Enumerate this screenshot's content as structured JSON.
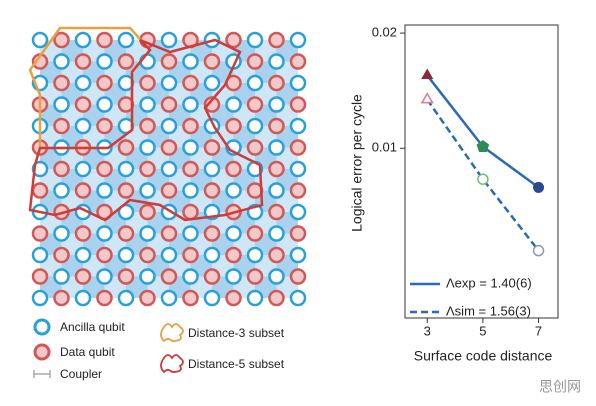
{
  "chart_data": {
    "type": "scatter",
    "x_label": "Surface code distance",
    "y_label": "Logical error per cycle",
    "x": [
      3,
      5,
      7
    ],
    "xlim": [
      2.2,
      7.7
    ],
    "xticks": [
      3,
      5,
      7
    ],
    "ylim": [
      0.0036,
      0.021
    ],
    "yticks": [
      0.01,
      0.02
    ],
    "log_y": true,
    "legend": "lower right",
    "series": [
      {
        "name": "Λexp = 1.40(6)",
        "color": "#2a6bb5",
        "dash": false,
        "filled": true,
        "values": [
          0.0155,
          0.0101,
          0.0079
        ],
        "markers": [
          "triangle",
          "pentagon",
          "circle"
        ],
        "marker_colors": [
          "#8b2a36",
          "#2e8b57",
          "#2b4a8c"
        ]
      },
      {
        "name": "Λsim = 1.56(3)",
        "color": "#2a6bb5",
        "dash": true,
        "filled": false,
        "values": [
          0.0134,
          0.0083,
          0.0054
        ],
        "markers": [
          "triangle",
          "circle",
          "circle"
        ],
        "marker_colors": [
          "#e07a8a",
          "#6cc070",
          "#8a9ab8"
        ]
      }
    ]
  },
  "diagram": {
    "legend": [
      "Ancilla qubit",
      "Data qubit",
      "Coupler",
      "Distance-3 subset",
      "Distance-5 subset"
    ]
  },
  "watermark": "思创网"
}
